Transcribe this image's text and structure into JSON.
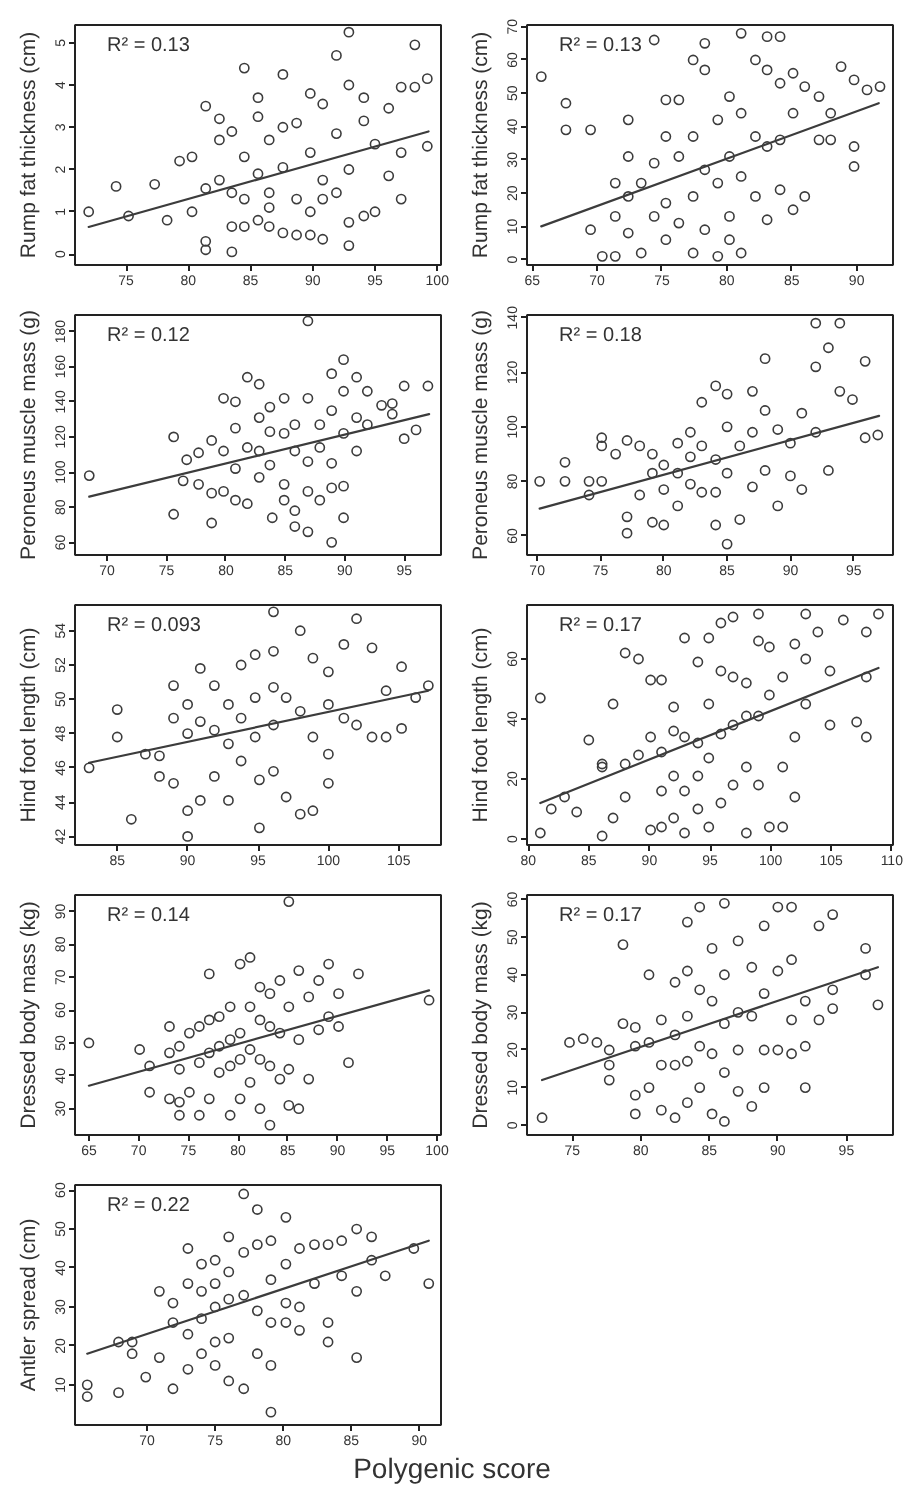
{
  "chart_data": [
    {
      "type": "scatter",
      "ylabel": "Rump fat thickness (cm)",
      "annotations": [
        "R² = 0.13"
      ],
      "xlim": [
        70.9,
        100.3
      ],
      "ylim": [
        -0.26,
        5.42
      ],
      "xticks": [
        75,
        80,
        85,
        90,
        95,
        100
      ],
      "yticks": [
        0,
        1,
        2,
        3,
        4,
        5
      ],
      "series": [
        {
          "color": "#3c3c3c",
          "marker": "circle",
          "x": [
            72.0,
            74.2,
            75.2,
            77.3,
            78.3,
            79.3,
            80.3,
            80.3,
            81.4,
            81.4,
            81.4,
            81.4,
            82.5,
            82.5,
            82.5,
            83.5,
            83.5,
            83.5,
            83.5,
            84.5,
            84.5,
            84.5,
            84.5,
            85.6,
            85.6,
            85.6,
            85.6,
            86.5,
            86.5,
            86.5,
            86.5,
            87.6,
            87.6,
            87.6,
            87.6,
            88.7,
            88.7,
            88.7,
            89.8,
            89.8,
            89.8,
            89.8,
            90.8,
            90.8,
            90.8,
            90.8,
            91.9,
            91.9,
            91.9,
            92.9,
            92.9,
            92.9,
            92.9,
            92.9,
            94.1,
            94.1,
            94.1,
            95.0,
            95.0,
            96.1,
            96.1,
            97.1,
            97.1,
            97.1,
            98.2,
            98.2,
            99.2,
            99.2
          ],
          "values": [
            1.0,
            1.6,
            0.9,
            1.65,
            0.8,
            2.2,
            2.3,
            1.0,
            3.5,
            1.55,
            0.3,
            0.1,
            3.2,
            2.7,
            1.75,
            2.9,
            1.45,
            0.05,
            0.65,
            4.4,
            2.3,
            1.3,
            0.65,
            3.7,
            3.25,
            1.9,
            0.8,
            2.7,
            1.45,
            0.65,
            1.1,
            4.25,
            3.0,
            2.05,
            0.5,
            3.1,
            1.3,
            0.45,
            3.8,
            2.4,
            1.0,
            0.45,
            3.55,
            1.75,
            1.3,
            0.35,
            4.7,
            2.85,
            1.45,
            5.25,
            4.0,
            0.2,
            0.75,
            2.0,
            3.7,
            0.9,
            3.15,
            2.6,
            1.0,
            1.85,
            3.45,
            3.95,
            1.3,
            2.4,
            4.95,
            3.95,
            4.15,
            2.55
          ]
        },
        {
          "type": "line",
          "color": "#3c3c3c",
          "x": [
            72.0,
            99.3
          ],
          "values": [
            0.64,
            2.9
          ]
        }
      ]
    },
    {
      "type": "scatter",
      "ylabel": "Rump fat thickness (cm)",
      "annotations": [
        "R² = 0.13"
      ],
      "xlim": [
        64.6,
        92.8
      ],
      "ylim": [
        -1.6,
        70.5
      ],
      "xticks": [
        65,
        70,
        75,
        80,
        85,
        90
      ],
      "yticks": [
        0,
        10,
        20,
        30,
        40,
        50,
        60,
        70
      ],
      "series": [
        {
          "color": "#3c3c3c",
          "marker": "circle",
          "x": [
            65.7,
            67.6,
            67.6,
            69.5,
            69.5,
            70.4,
            71.4,
            71.4,
            71.4,
            72.4,
            72.4,
            72.4,
            72.4,
            73.4,
            73.4,
            74.4,
            74.4,
            74.4,
            75.3,
            75.3,
            75.3,
            75.3,
            76.3,
            76.3,
            76.3,
            77.4,
            77.4,
            77.4,
            77.4,
            78.3,
            78.3,
            78.3,
            78.3,
            79.3,
            79.3,
            79.3,
            80.2,
            80.2,
            80.2,
            80.2,
            81.1,
            81.1,
            81.1,
            81.1,
            82.2,
            82.2,
            82.2,
            83.1,
            83.1,
            83.1,
            83.1,
            84.1,
            84.1,
            84.1,
            84.1,
            85.1,
            85.1,
            85.1,
            86.0,
            86.0,
            87.1,
            87.1,
            88.0,
            88.0,
            88.8,
            89.8,
            89.8,
            89.8,
            90.8,
            91.8
          ],
          "values": [
            55,
            47,
            39,
            39,
            9,
            1,
            1,
            13,
            23,
            31,
            42,
            19,
            8,
            2,
            23,
            66,
            13,
            29,
            48,
            37,
            17,
            6,
            48,
            31,
            11,
            60,
            37,
            19,
            2,
            65,
            57,
            27,
            9,
            42,
            23,
            1,
            49,
            31,
            13,
            6,
            68,
            44,
            25,
            2,
            60,
            37,
            19,
            67,
            57,
            34,
            12,
            67,
            53,
            36,
            21,
            56,
            44,
            15,
            52,
            19,
            49,
            36,
            44,
            36,
            58,
            54,
            34,
            28,
            51,
            52
          ]
        },
        {
          "type": "line",
          "color": "#3c3c3c",
          "x": [
            65.7,
            91.7
          ],
          "values": [
            10,
            47
          ]
        }
      ]
    },
    {
      "type": "scatter",
      "ylabel": "Peroneus muscle mass (g)",
      "annotations": [
        "R² = 0.12"
      ],
      "xlim": [
        67.3,
        98.1
      ],
      "ylim": [
        52.8,
        189.4
      ],
      "xticks": [
        70,
        75,
        80,
        85,
        90,
        95
      ],
      "yticks": [
        60,
        80,
        100,
        120,
        140,
        160,
        180
      ],
      "series": [
        {
          "color": "#3c3c3c",
          "marker": "circle",
          "x": [
            68.5,
            75.6,
            75.6,
            76.4,
            76.7,
            77.7,
            77.7,
            78.8,
            78.8,
            78.8,
            79.8,
            79.8,
            79.8,
            80.8,
            80.8,
            80.8,
            80.8,
            81.8,
            81.8,
            81.8,
            82.8,
            82.8,
            82.8,
            82.8,
            83.7,
            83.7,
            83.7,
            83.9,
            84.9,
            84.9,
            84.9,
            84.9,
            85.8,
            85.8,
            85.8,
            85.8,
            86.9,
            86.9,
            86.9,
            86.9,
            86.9,
            87.9,
            87.9,
            87.9,
            88.9,
            88.9,
            88.9,
            88.9,
            88.9,
            89.9,
            89.9,
            89.9,
            89.9,
            89.9,
            91.0,
            91.0,
            91.0,
            91.9,
            91.9,
            93.1,
            94.0,
            94.0,
            95.0,
            95.0,
            96.0,
            97.0
          ],
          "values": [
            98,
            120,
            76,
            95,
            107,
            111,
            93,
            118,
            71,
            88,
            142,
            112,
            89,
            140,
            125,
            102,
            84,
            154,
            114,
            82,
            150,
            131,
            112,
            97,
            137,
            123,
            104,
            74,
            142,
            122,
            93,
            84,
            127,
            112,
            69,
            78,
            186,
            142,
            106,
            89,
            66,
            127,
            114,
            84,
            156,
            135,
            105,
            91,
            60,
            164,
            146,
            122,
            92,
            74,
            154,
            131,
            112,
            146,
            127,
            138,
            133,
            139,
            149,
            119,
            124,
            149
          ]
        },
        {
          "type": "line",
          "color": "#3c3c3c",
          "x": [
            68.5,
            97.1
          ],
          "values": [
            86,
            133
          ]
        }
      ]
    },
    {
      "type": "scatter",
      "ylabel": "Peroneus muscle mass (g)",
      "annotations": [
        "R² = 0.18"
      ],
      "xlim": [
        69.2,
        98.1
      ],
      "ylim": [
        53,
        141
      ],
      "xticks": [
        70,
        75,
        80,
        85,
        90,
        95
      ],
      "yticks": [
        60,
        80,
        100,
        120,
        140
      ],
      "series": [
        {
          "color": "#3c3c3c",
          "marker": "circle",
          "x": [
            70.2,
            72.2,
            72.2,
            74.1,
            74.1,
            75.1,
            75.1,
            75.1,
            76.2,
            77.1,
            77.1,
            77.1,
            78.1,
            78.1,
            79.1,
            79.1,
            79.1,
            80.0,
            80.0,
            80.0,
            81.1,
            81.1,
            81.1,
            82.1,
            82.1,
            82.1,
            83.0,
            83.0,
            83.0,
            84.1,
            84.1,
            84.1,
            84.1,
            85.0,
            85.0,
            85.0,
            85.0,
            86.0,
            86.0,
            87.0,
            87.0,
            87.0,
            88.0,
            88.0,
            88.0,
            89.0,
            89.0,
            90.0,
            90.0,
            90.9,
            90.9,
            92.0,
            92.0,
            92.0,
            93.0,
            93.0,
            93.9,
            93.9,
            94.9,
            95.9,
            95.9,
            96.9
          ],
          "values": [
            80,
            87,
            80,
            80,
            75,
            80,
            96,
            93,
            90,
            67,
            61,
            95,
            93,
            75,
            83,
            65,
            90,
            86,
            64,
            77,
            94,
            83,
            71,
            98,
            89,
            79,
            109,
            93,
            76,
            115,
            88,
            64,
            76,
            112,
            100,
            57,
            83,
            93,
            66,
            113,
            98,
            78,
            125,
            106,
            84,
            99,
            71,
            94,
            82,
            105,
            77,
            122,
            98,
            138,
            84,
            129,
            138,
            113,
            110,
            124,
            96,
            97
          ]
        },
        {
          "type": "line",
          "color": "#3c3c3c",
          "x": [
            70.2,
            97.0
          ],
          "values": [
            70,
            104
          ]
        }
      ]
    },
    {
      "type": "scatter",
      "ylabel": "Hind foot length (cm)",
      "annotations": [
        "R² = 0.093"
      ],
      "xlim": [
        82.0,
        108.0
      ],
      "ylim": [
        41.5,
        55.5
      ],
      "xticks": [
        85,
        90,
        95,
        100,
        105
      ],
      "yticks": [
        42,
        44,
        46,
        48,
        50,
        52,
        54
      ],
      "series": [
        {
          "color": "#3c3c3c",
          "marker": "circle",
          "x": [
            83.0,
            85.0,
            85.0,
            86.0,
            87.0,
            88.0,
            88.0,
            89.0,
            89.0,
            89.0,
            90.0,
            90.0,
            90.0,
            90.0,
            90.9,
            90.9,
            90.9,
            91.9,
            91.9,
            91.9,
            92.9,
            92.9,
            92.9,
            93.8,
            93.8,
            93.8,
            94.8,
            94.8,
            94.8,
            95.1,
            95.1,
            96.1,
            96.1,
            96.1,
            96.1,
            96.1,
            97.0,
            97.0,
            98.0,
            98.0,
            98.0,
            98.9,
            98.9,
            98.9,
            100.0,
            100.0,
            100.0,
            100.0,
            101.1,
            101.1,
            102.0,
            102.0,
            103.1,
            103.1,
            104.1,
            104.1,
            105.2,
            105.2,
            106.2,
            107.1
          ],
          "values": [
            46.0,
            49.4,
            47.8,
            43.0,
            46.8,
            46.7,
            45.5,
            48.9,
            50.8,
            45.1,
            49.7,
            48.0,
            43.5,
            42.0,
            51.8,
            48.7,
            44.1,
            50.8,
            48.2,
            45.5,
            49.7,
            47.4,
            44.1,
            52.0,
            48.9,
            46.4,
            52.6,
            50.1,
            47.8,
            42.5,
            45.3,
            55.1,
            52.8,
            50.7,
            48.5,
            45.8,
            50.1,
            44.3,
            54.0,
            49.3,
            43.3,
            52.4,
            47.8,
            43.5,
            51.6,
            49.7,
            46.8,
            45.1,
            53.2,
            48.9,
            54.7,
            48.5,
            53.0,
            47.8,
            50.5,
            47.8,
            51.9,
            48.3,
            50.1,
            50.8
          ]
        },
        {
          "type": "line",
          "color": "#3c3c3c",
          "x": [
            83.0,
            107.1
          ],
          "values": [
            46.3,
            50.5
          ]
        }
      ]
    },
    {
      "type": "scatter",
      "ylabel": "Hind foot length (cm)",
      "annotations": [
        "R² = 0.17"
      ],
      "xlim": [
        79.9,
        110.1
      ],
      "ylim": [
        -2,
        78
      ],
      "xticks": [
        80,
        85,
        90,
        95,
        100,
        105,
        110
      ],
      "yticks": [
        0,
        20,
        40,
        60
      ],
      "series": [
        {
          "color": "#3c3c3c",
          "marker": "circle",
          "x": [
            81.0,
            81.0,
            81.9,
            83.0,
            84.0,
            85.0,
            86.1,
            86.1,
            86.1,
            87.0,
            87.0,
            88.0,
            88.0,
            88.0,
            89.1,
            89.1,
            90.1,
            90.1,
            90.1,
            91.0,
            91.0,
            91.0,
            91.0,
            92.0,
            92.0,
            92.0,
            92.0,
            92.9,
            92.9,
            92.9,
            92.9,
            94.0,
            94.0,
            94.0,
            94.0,
            94.9,
            94.9,
            94.9,
            94.9,
            95.9,
            95.9,
            95.9,
            95.9,
            96.9,
            96.9,
            96.9,
            96.9,
            98.0,
            98.0,
            98.0,
            98.0,
            99.0,
            99.0,
            99.0,
            99.0,
            99.9,
            99.9,
            99.9,
            101.0,
            101.0,
            101.0,
            102.0,
            102.0,
            102.0,
            102.9,
            102.9,
            102.9,
            103.9,
            104.9,
            104.9,
            106.0,
            107.1,
            107.9,
            107.9,
            107.9,
            108.9
          ],
          "values": [
            47,
            2,
            10,
            14,
            9,
            33,
            25,
            24,
            1,
            7,
            45,
            62,
            14,
            25,
            60,
            28,
            53,
            3,
            34,
            53,
            29,
            16,
            4,
            44,
            36,
            21,
            7,
            67,
            34,
            16,
            2,
            59,
            32,
            21,
            10,
            67,
            45,
            27,
            4,
            72,
            56,
            35,
            12,
            74,
            54,
            38,
            18,
            52,
            41,
            24,
            2,
            75,
            66,
            41,
            18,
            64,
            48,
            4,
            54,
            24,
            4,
            65,
            34,
            14,
            75,
            60,
            45,
            69,
            38,
            56,
            73,
            39,
            69,
            34,
            54,
            75
          ]
        },
        {
          "type": "line",
          "color": "#3c3c3c",
          "x": [
            81.0,
            108.9
          ],
          "values": [
            12,
            57
          ]
        }
      ]
    },
    {
      "type": "scatter",
      "ylabel": "Dressed body mass (kg)",
      "annotations": [
        "R² = 0.14"
      ],
      "xlim": [
        63.6,
        100.4
      ],
      "ylim": [
        22,
        95
      ],
      "xticks": [
        65,
        70,
        75,
        80,
        85,
        90,
        95,
        100
      ],
      "yticks": [
        30,
        40,
        50,
        60,
        70,
        80,
        90
      ],
      "series": [
        {
          "color": "#3c3c3c",
          "marker": "circle",
          "x": [
            65.0,
            70.1,
            71.1,
            71.1,
            73.1,
            73.1,
            73.1,
            74.1,
            74.1,
            74.1,
            74.1,
            75.1,
            75.1,
            76.1,
            76.1,
            76.1,
            77.1,
            77.1,
            77.1,
            77.1,
            78.1,
            78.1,
            78.1,
            79.2,
            79.2,
            79.2,
            79.2,
            80.2,
            80.2,
            80.2,
            80.2,
            81.2,
            81.2,
            81.2,
            81.2,
            82.2,
            82.2,
            82.2,
            82.2,
            83.2,
            83.2,
            83.2,
            83.2,
            84.2,
            84.2,
            84.2,
            85.1,
            85.1,
            85.1,
            85.1,
            86.1,
            86.1,
            86.1,
            87.1,
            87.1,
            88.1,
            88.1,
            89.1,
            89.1,
            90.1,
            90.1,
            91.1,
            92.1,
            99.2
          ],
          "values": [
            50,
            48,
            43,
            35,
            55,
            47,
            33,
            49,
            42,
            32,
            28,
            53,
            35,
            44,
            28,
            55,
            71,
            57,
            47,
            33,
            58,
            49,
            41,
            61,
            51,
            43,
            28,
            74,
            53,
            45,
            33,
            76,
            61,
            48,
            38,
            67,
            57,
            45,
            30,
            65,
            55,
            43,
            25,
            69,
            53,
            39,
            93,
            61,
            42,
            31,
            72,
            51,
            30,
            64,
            39,
            54,
            69,
            74,
            58,
            65,
            55,
            44,
            71,
            63
          ]
        },
        {
          "type": "line",
          "color": "#3c3c3c",
          "x": [
            65.0,
            99.2
          ],
          "values": [
            37,
            66
          ]
        }
      ]
    },
    {
      "type": "scatter",
      "ylabel": "Dressed body mass (kg)",
      "annotations": [
        "R² = 0.17"
      ],
      "xlim": [
        71.7,
        98.4
      ],
      "ylim": [
        -2.6,
        61.2
      ],
      "xticks": [
        75,
        80,
        85,
        90,
        95
      ],
      "yticks": [
        0,
        10,
        20,
        30,
        40,
        50,
        60
      ],
      "series": [
        {
          "color": "#3c3c3c",
          "marker": "circle",
          "x": [
            72.8,
            74.8,
            75.8,
            76.8,
            77.7,
            77.7,
            77.7,
            78.7,
            78.7,
            79.6,
            79.6,
            79.6,
            79.6,
            80.6,
            80.6,
            80.6,
            81.5,
            81.5,
            81.5,
            82.5,
            82.5,
            82.5,
            82.5,
            83.4,
            83.4,
            83.4,
            83.4,
            83.4,
            84.3,
            84.3,
            84.3,
            84.3,
            85.2,
            85.2,
            85.2,
            85.2,
            86.1,
            86.1,
            86.1,
            86.1,
            86.1,
            87.1,
            87.1,
            87.1,
            87.1,
            88.1,
            88.1,
            88.1,
            89.0,
            89.0,
            89.0,
            89.0,
            90.0,
            90.0,
            90.0,
            91.0,
            91.0,
            91.0,
            91.0,
            92.0,
            92.0,
            92.0,
            93.0,
            93.0,
            94.0,
            94.0,
            94.0,
            96.4,
            96.4,
            97.3
          ],
          "values": [
            2,
            22,
            23,
            22,
            20,
            16,
            12,
            48,
            27,
            26,
            21,
            8,
            3,
            40,
            22,
            10,
            28,
            16,
            4,
            38,
            24,
            2,
            16,
            54,
            41,
            29,
            17,
            6,
            58,
            36,
            21,
            10,
            47,
            33,
            19,
            3,
            59,
            40,
            27,
            14,
            1,
            49,
            30,
            20,
            9,
            42,
            29,
            5,
            53,
            35,
            20,
            10,
            58,
            41,
            20,
            58,
            44,
            28,
            19,
            33,
            10,
            21,
            53,
            28,
            56,
            36,
            31,
            47,
            40,
            32
          ]
        },
        {
          "type": "line",
          "color": "#3c3c3c",
          "x": [
            72.8,
            97.3
          ],
          "values": [
            12,
            42
          ]
        }
      ]
    },
    {
      "type": "scatter",
      "ylabel": "Antler spread (cm)",
      "xlabel": "Polygenic score",
      "annotations": [
        "R² = 0.22"
      ],
      "xlim": [
        64.7,
        91.6
      ],
      "ylim": [
        -0.3,
        61.3
      ],
      "xticks": [
        70,
        75,
        80,
        85,
        90
      ],
      "yticks": [
        10,
        20,
        30,
        40,
        50,
        60
      ],
      "series": [
        {
          "color": "#3c3c3c",
          "marker": "circle",
          "x": [
            65.6,
            65.6,
            67.9,
            67.9,
            68.9,
            68.9,
            69.9,
            70.9,
            70.9,
            71.9,
            71.9,
            71.9,
            73.0,
            73.0,
            73.0,
            73.0,
            74.0,
            74.0,
            74.0,
            74.0,
            75.0,
            75.0,
            75.0,
            75.0,
            75.0,
            76.0,
            76.0,
            76.0,
            76.0,
            76.0,
            77.1,
            77.1,
            77.1,
            77.1,
            78.1,
            78.1,
            78.1,
            78.1,
            79.1,
            79.1,
            79.1,
            79.1,
            79.1,
            80.2,
            80.2,
            80.2,
            80.2,
            81.2,
            81.2,
            81.2,
            82.3,
            82.3,
            83.3,
            83.3,
            83.3,
            84.3,
            84.3,
            85.4,
            85.4,
            85.4,
            86.5,
            86.5,
            87.5,
            89.6,
            90.7
          ],
          "values": [
            10,
            7,
            21,
            8,
            21,
            18,
            12,
            34,
            17,
            31,
            26,
            9,
            45,
            36,
            23,
            14,
            41,
            34,
            27,
            18,
            42,
            36,
            30,
            21,
            15,
            48,
            39,
            32,
            22,
            11,
            59,
            44,
            33,
            9,
            55,
            46,
            29,
            18,
            47,
            37,
            26,
            15,
            3,
            53,
            41,
            31,
            26,
            45,
            30,
            24,
            46,
            36,
            46,
            26,
            21,
            47,
            38,
            50,
            17,
            34,
            48,
            42,
            38,
            45,
            36
          ]
        },
        {
          "type": "line",
          "color": "#3c3c3c",
          "x": [
            65.6,
            90.7
          ],
          "values": [
            18,
            47
          ]
        }
      ]
    }
  ]
}
